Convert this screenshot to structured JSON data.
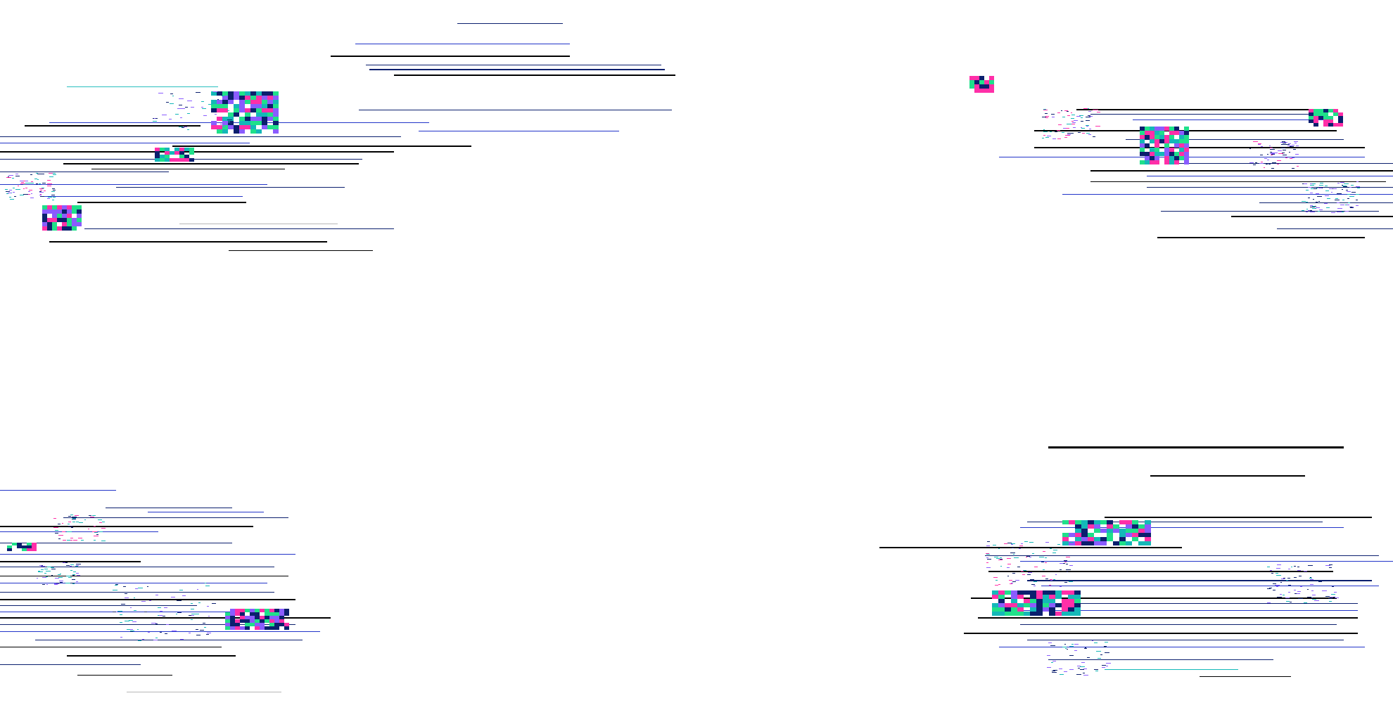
{
  "artifact": {
    "kind": "glitch-scanline-art",
    "readable_text": "none"
  },
  "palette": {
    "background": "#ffffff",
    "dark": "#000000",
    "navy": "#0b1f6e",
    "blue": "#2234c9",
    "teal": "#14b8b8",
    "green": "#1fe08a",
    "magenta": "#ff2fa8",
    "violet": "#8a5cff",
    "light_gray": "#b7b7b7"
  },
  "regions": [
    {
      "name": "top-left-cluster"
    },
    {
      "name": "top-right-cluster"
    },
    {
      "name": "bottom-left-cluster"
    },
    {
      "name": "bottom-right-cluster"
    }
  ]
}
